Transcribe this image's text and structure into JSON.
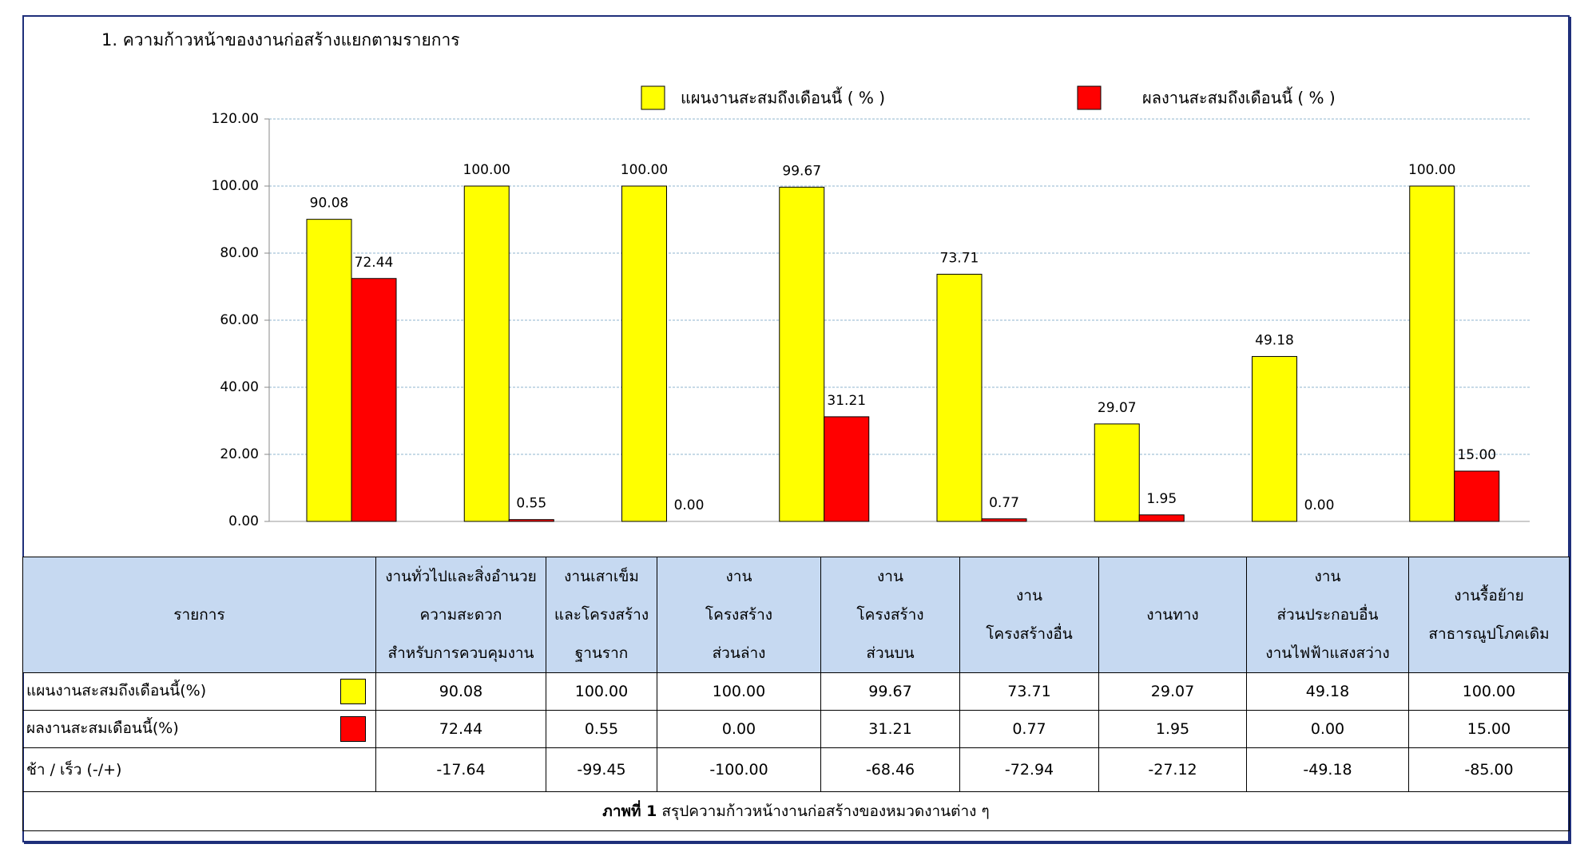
{
  "chart_data": {
    "type": "bar",
    "title": "1. ความก้าวหน้าของงานก่อสร้างแยกตามรายการ",
    "series": [
      {
        "name": "แผนงานสะสมถึงเดือนนี้ ( % )",
        "color": "#ffff00",
        "values": [
          90.08,
          100,
          100,
          99.67,
          73.71,
          29.07,
          49.18,
          100
        ],
        "value_labels": [
          "90.08",
          "100.00",
          "100.00",
          "99.67",
          "73.71",
          "29.07",
          "49.18",
          "100.00"
        ]
      },
      {
        "name": "ผลงานสะสมถึงเดือนนี้ ( % )",
        "color": "#ff0000",
        "values": [
          72.44,
          0.55,
          0,
          31.21,
          0.77,
          1.95,
          0,
          15
        ],
        "value_labels": [
          "72.44",
          "0.55",
          "0.00",
          "31.21",
          "0.77",
          "1.95",
          "0.00",
          "15.00"
        ]
      }
    ],
    "ylim": [
      0,
      120
    ],
    "yticks": [
      {
        "value": 0,
        "label": "0.00"
      },
      {
        "value": 20,
        "label": "20.00"
      },
      {
        "value": 40,
        "label": "40.00"
      },
      {
        "value": 60,
        "label": "60.00"
      },
      {
        "value": 80,
        "label": "80.00"
      },
      {
        "value": 100,
        "label": "100.00"
      },
      {
        "value": 120,
        "label": "120.00"
      }
    ],
    "grid": true
  },
  "table": {
    "header": [
      [
        "รายการ"
      ],
      [
        "งานทั่วไปและสิ่งอำนวย",
        "ความสะดวก",
        "สำหรับการควบคุมงาน"
      ],
      [
        "งานเสาเข็ม",
        "และโครงสร้าง",
        "ฐานราก"
      ],
      [
        "งาน",
        "โครงสร้าง",
        "ส่วนล่าง"
      ],
      [
        "งาน",
        "โครงสร้าง",
        "ส่วนบน"
      ],
      [
        "งาน",
        "โครงสร้างอื่น"
      ],
      [
        "งานทาง"
      ],
      [
        "งาน",
        "ส่วนประกอบอื่น",
        "งานไฟฟ้าแสงสว่าง"
      ],
      [
        "งานรื้อย้าย",
        "สาธารณูปโภคเดิม"
      ]
    ],
    "rows": [
      [
        "แผนงานสะสมถึงเดือนนี้(%)",
        "90.08",
        "100.00",
        "100.00",
        "99.67",
        "73.71",
        "29.07",
        "49.18",
        "100.00"
      ],
      [
        "ผลงานสะสมเดือนนี้(%)",
        "72.44",
        "0.55",
        "0.00",
        "31.21",
        "0.77",
        "1.95",
        "0.00",
        "15.00"
      ],
      [
        "ช้า / เร็ว  (-/+)",
        "-17.64",
        "-99.45",
        "-100.00",
        "-68.46",
        "-72.94",
        "-27.12",
        "-49.18",
        "-85.00"
      ]
    ],
    "caption_label": "ภาพที่ 1",
    "caption_text": "สรุปความก้าวหน้างานก่อสร้างของหมวดงานต่าง ๆ"
  }
}
